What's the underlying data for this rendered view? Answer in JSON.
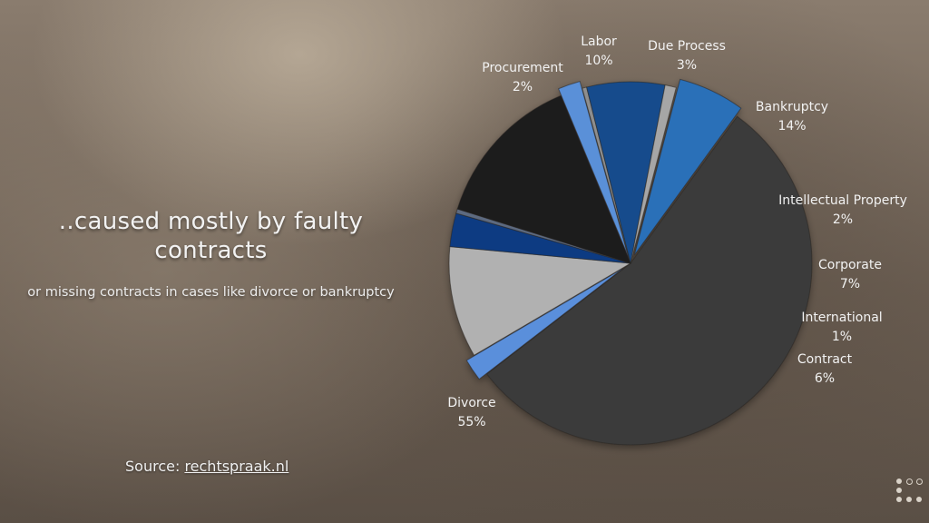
{
  "slide": {
    "heading": "..caused mostly by faulty contracts",
    "subheading": "or missing contracts in cases like divorce or bankruptcy",
    "source_prefix": "Source:",
    "source_link": "rechtspraak.nl"
  },
  "nav": {
    "icon": "slide-navigator-icon"
  },
  "chart_data": {
    "type": "pie",
    "title": "",
    "series": [
      {
        "category": "Divorce",
        "value": 55,
        "label": "55%",
        "color": "#3a3a3a"
      },
      {
        "category": "Procurement",
        "value": 2,
        "label": "2%",
        "color": "#5a8fdb"
      },
      {
        "category": "Labor",
        "value": 10,
        "label": "10%",
        "color": "#b1b1b1"
      },
      {
        "category": "Due Process",
        "value": 3,
        "label": "3%",
        "color": "#0c3b82"
      },
      {
        "category": "",
        "value": 0.4,
        "label": "",
        "color": "#5d6a80"
      },
      {
        "category": "Bankruptcy",
        "value": 14,
        "label": "14%",
        "color": "#1b1b1b"
      },
      {
        "category": "Intellectual Property",
        "value": 2,
        "label": "2%",
        "color": "#5a90d8"
      },
      {
        "category": "",
        "value": 0.4,
        "label": "",
        "color": "#8e8e8e"
      },
      {
        "category": "Corporate",
        "value": 7,
        "label": "7%",
        "color": "#154c8c"
      },
      {
        "category": "International",
        "value": 1,
        "label": "1%",
        "color": "#a6a6a6"
      },
      {
        "category": "Contract",
        "value": 6,
        "label": "6%",
        "color": "#2c6fb8"
      }
    ]
  }
}
